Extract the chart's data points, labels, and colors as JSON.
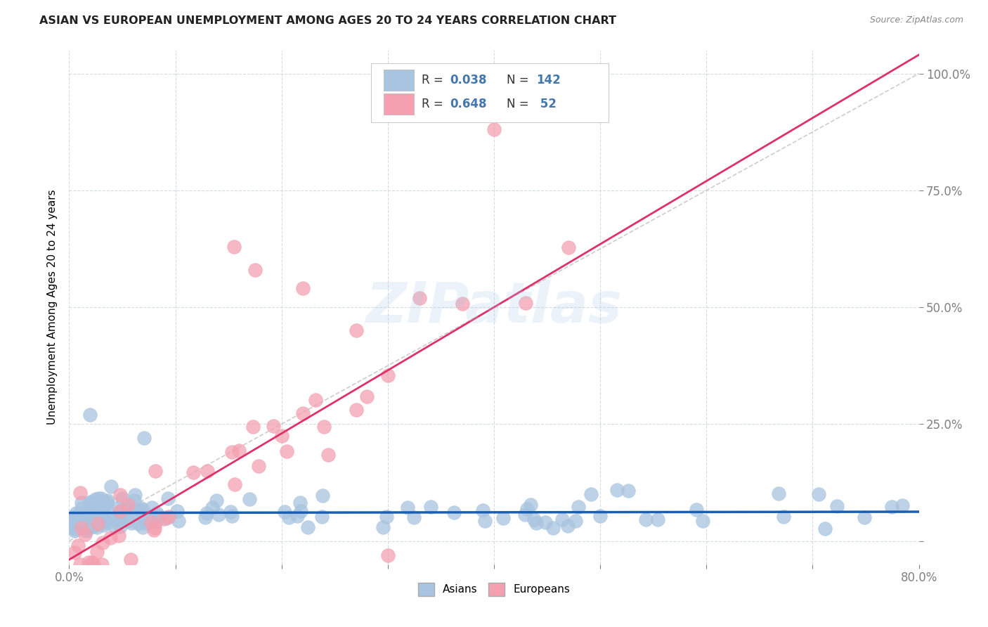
{
  "title": "ASIAN VS EUROPEAN UNEMPLOYMENT AMONG AGES 20 TO 24 YEARS CORRELATION CHART",
  "source": "Source: ZipAtlas.com",
  "ylabel": "Unemployment Among Ages 20 to 24 years",
  "xlim": [
    0.0,
    0.8
  ],
  "ylim": [
    -0.05,
    1.05
  ],
  "asian_R": 0.038,
  "asian_N": 142,
  "european_R": 0.648,
  "european_N": 52,
  "asian_color": "#a8c4e0",
  "european_color": "#f4a0b0",
  "asian_line_color": "#1a5fb4",
  "european_line_color": "#e0306a",
  "ref_line_color": "#c0c0c0",
  "background_color": "#ffffff",
  "grid_color": "#d0d8e0",
  "tick_color": "#4477aa",
  "watermark": "ZIPatlas",
  "title_color": "#222222",
  "source_color": "#888888",
  "legend_text_color": "#333333"
}
